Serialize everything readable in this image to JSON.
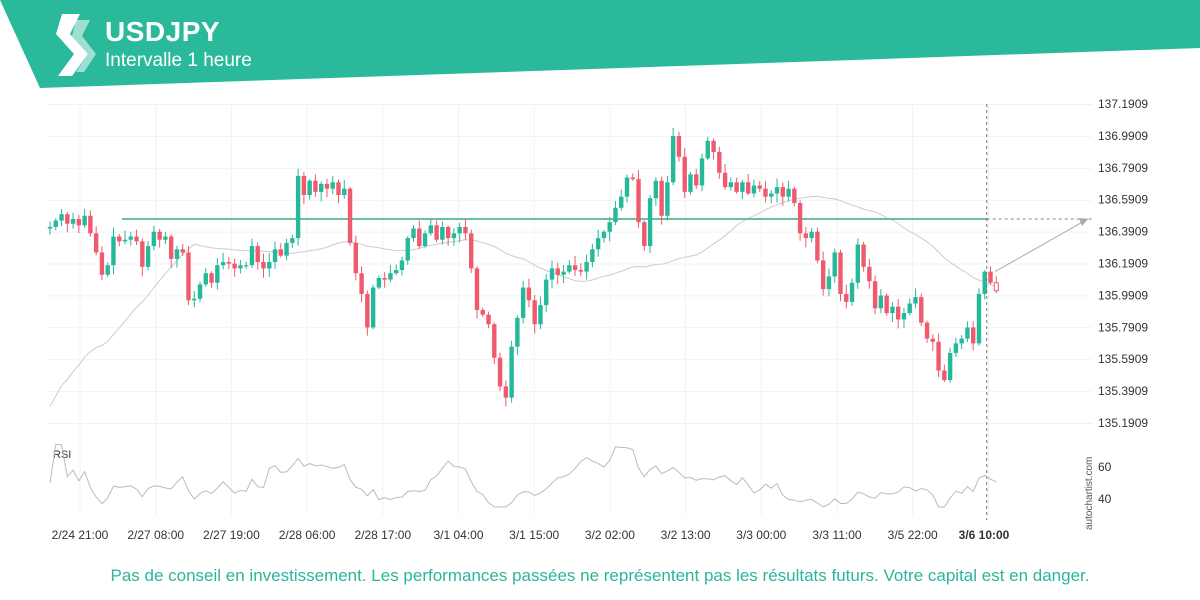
{
  "header": {
    "title": "USDJPY",
    "subtitle": "Intervalle 1 heure",
    "brand_color": "#2bb99b",
    "logo_icon": "autochartist-logo-icon"
  },
  "footer": {
    "disclaimer": "Pas de conseil en investissement. Les performances passées ne représentent pas les résultats futurs. Votre capital est en danger."
  },
  "watermark": "autochartist.com",
  "chart_data": {
    "type": "candlestick",
    "symbol": "USDJPY",
    "interval": "1 heure",
    "price_axis": {
      "min": 135.1909,
      "max": 137.1909,
      "ticks": [
        "137.1909",
        "136.9909",
        "136.7909",
        "136.5909",
        "136.3909",
        "136.1909",
        "135.9909",
        "135.7909",
        "135.5909",
        "135.3909",
        "135.1909"
      ]
    },
    "time_axis": {
      "labels": [
        "2/24 21:00",
        "2/27 08:00",
        "2/27 19:00",
        "2/28 06:00",
        "2/28 17:00",
        "3/1 04:00",
        "3/1 15:00",
        "3/2 02:00",
        "3/2 13:00",
        "3/3 00:00",
        "3/3 11:00",
        "3/5 22:00",
        "3/6 10:00"
      ],
      "current_label": "3/6 10:00"
    },
    "key_level": 136.47,
    "projection": {
      "from": 136.14,
      "to": 136.47
    },
    "colors": {
      "up": "#26b89a",
      "down": "#ef5a6f",
      "level": "#6dbf9b",
      "ma": "#cccccc",
      "rsi": "#bbbbbb",
      "projection": "#aaaaaa"
    },
    "closes": [
      136.42,
      136.46,
      136.5,
      136.44,
      136.47,
      136.43,
      136.49,
      136.38,
      136.26,
      136.12,
      136.18,
      136.36,
      136.33,
      136.34,
      136.36,
      136.33,
      136.17,
      136.3,
      136.39,
      136.34,
      136.36,
      136.22,
      136.28,
      136.26,
      135.96,
      135.97,
      136.06,
      136.13,
      136.07,
      136.18,
      136.2,
      136.19,
      136.16,
      136.18,
      136.18,
      136.3,
      136.2,
      136.16,
      136.2,
      136.28,
      136.24,
      136.32,
      136.35,
      136.74,
      136.62,
      136.71,
      136.64,
      136.69,
      136.66,
      136.7,
      136.62,
      136.66,
      136.32,
      136.13,
      136.0,
      135.79,
      136.04,
      136.1,
      136.09,
      136.13,
      136.15,
      136.21,
      136.35,
      136.41,
      136.3,
      136.38,
      136.43,
      136.34,
      136.42,
      136.35,
      136.38,
      136.42,
      136.38,
      136.16,
      135.9,
      135.87,
      135.81,
      135.6,
      135.42,
      135.35,
      135.67,
      135.85,
      136.04,
      135.96,
      135.81,
      135.93,
      136.09,
      136.16,
      136.12,
      136.14,
      136.18,
      136.15,
      136.14,
      136.2,
      136.28,
      136.35,
      136.39,
      136.45,
      136.54,
      136.61,
      136.73,
      136.72,
      136.45,
      136.3,
      136.6,
      136.71,
      136.49,
      136.7,
      136.99,
      136.86,
      136.64,
      136.75,
      136.68,
      136.85,
      136.96,
      136.89,
      136.76,
      136.67,
      136.7,
      136.64,
      136.7,
      136.63,
      136.68,
      136.66,
      136.61,
      136.63,
      136.67,
      136.61,
      136.66,
      136.57,
      136.38,
      136.35,
      136.39,
      136.21,
      136.03,
      136.11,
      136.26,
      136.0,
      135.95,
      136.07,
      136.31,
      136.17,
      136.08,
      135.91,
      135.99,
      135.88,
      135.92,
      135.84,
      135.88,
      135.94,
      135.98,
      135.82,
      135.72,
      135.7,
      135.52,
      135.46,
      135.63,
      135.69,
      135.72,
      135.79,
      135.69,
      136.0,
      136.14,
      136.07,
      136.02
    ],
    "rsi": {
      "label": "RSI",
      "ticks": [
        "60",
        "40"
      ]
    }
  }
}
